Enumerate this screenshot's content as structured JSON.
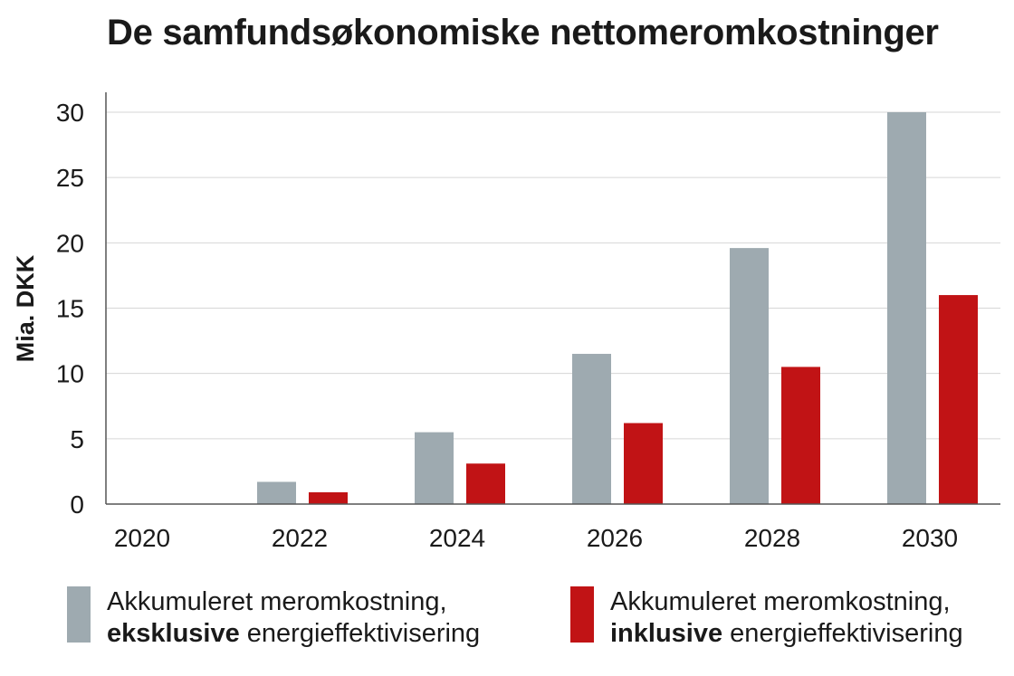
{
  "chart_data": {
    "type": "bar",
    "title": "De samfundsøkonomiske nettomeromkostninger",
    "ylabel": "Mia. DKK",
    "xlabel": "",
    "ylim": [
      0,
      30
    ],
    "yticks": [
      0,
      5,
      10,
      15,
      20,
      25,
      30
    ],
    "grid": true,
    "legend_position": "bottom",
    "categories": [
      "2020",
      "2022",
      "2024",
      "2026",
      "2028",
      "2030"
    ],
    "series": [
      {
        "name_line1": "Akkumuleret meromkostning,",
        "name_bold": "eksklusive",
        "name_rest": " energieffektivisering",
        "color": "#9eaab0",
        "values": [
          0,
          1.7,
          5.5,
          11.5,
          19.6,
          30
        ]
      },
      {
        "name_line1": "Akkumuleret meromkostning,",
        "name_bold": "inklusive",
        "name_rest": " energieffektivisering",
        "color": "#c11315",
        "values": [
          0,
          0.9,
          3.1,
          6.2,
          10.5,
          16
        ]
      }
    ]
  }
}
